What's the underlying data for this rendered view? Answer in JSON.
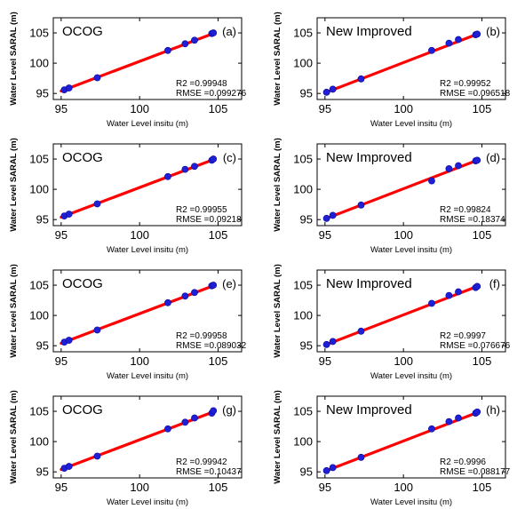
{
  "colors": {
    "fit_line": "#ff0000",
    "points": "#1f1fd6",
    "axes": "#000000",
    "background": "#ffffff"
  },
  "chart_data": [
    {
      "type": "scatter",
      "panel": "(a)",
      "method": "OCOG",
      "xlabel": "Water Level insitu (m)",
      "ylabel": "Water Level SARAL (m)",
      "xlim": [
        94.5,
        106.5
      ],
      "ylim": [
        94,
        107.5
      ],
      "xticks": [
        95,
        100,
        105
      ],
      "yticks": [
        95,
        100,
        105
      ],
      "stats": [
        "R2 =0.99948",
        "RMSE =0.099276"
      ],
      "fit_line": {
        "x": [
          95.0,
          104.8
        ],
        "y": [
          95.4,
          105.0
        ]
      },
      "points": [
        [
          95.2,
          95.6
        ],
        [
          95.5,
          95.9
        ],
        [
          97.3,
          97.6
        ],
        [
          101.8,
          102.1
        ],
        [
          102.9,
          103.2
        ],
        [
          103.5,
          103.8
        ],
        [
          104.6,
          104.9
        ],
        [
          104.7,
          105.0
        ]
      ]
    },
    {
      "type": "scatter",
      "panel": "(b)",
      "method": "New Improved",
      "xlabel": "Water Level insitu (m)",
      "ylabel": "Water Level SARAL (m)",
      "xlim": [
        94.5,
        106.5
      ],
      "ylim": [
        94,
        107.5
      ],
      "xticks": [
        95,
        100,
        105
      ],
      "yticks": [
        95,
        100,
        105
      ],
      "stats": [
        "R2 =0.99952",
        "RMSE =0.096518"
      ],
      "fit_line": {
        "x": [
          95.0,
          104.8
        ],
        "y": [
          95.1,
          104.9
        ]
      },
      "points": [
        [
          95.1,
          95.2
        ],
        [
          95.5,
          95.7
        ],
        [
          97.3,
          97.4
        ],
        [
          101.8,
          102.1
        ],
        [
          102.9,
          103.3
        ],
        [
          103.5,
          103.9
        ],
        [
          104.6,
          104.7
        ],
        [
          104.7,
          104.8
        ]
      ]
    },
    {
      "type": "scatter",
      "panel": "(c)",
      "method": "OCOG",
      "xlabel": "Water Level insitu (m)",
      "ylabel": "Water Level SARAL (m)",
      "xlim": [
        94.5,
        106.5
      ],
      "ylim": [
        94,
        107.5
      ],
      "xticks": [
        95,
        100,
        105
      ],
      "yticks": [
        95,
        100,
        105
      ],
      "stats": [
        "R2 =0.99955",
        "RMSE =0.09218"
      ],
      "fit_line": {
        "x": [
          95.0,
          104.8
        ],
        "y": [
          95.4,
          105.0
        ]
      },
      "points": [
        [
          95.2,
          95.6
        ],
        [
          95.5,
          95.9
        ],
        [
          97.3,
          97.6
        ],
        [
          101.8,
          102.1
        ],
        [
          102.9,
          103.3
        ],
        [
          103.5,
          103.8
        ],
        [
          104.6,
          104.8
        ],
        [
          104.7,
          105.0
        ]
      ]
    },
    {
      "type": "scatter",
      "panel": "(d)",
      "method": "New Improved",
      "xlabel": "Water Level insitu (m)",
      "ylabel": "Water Level SARAL (m)",
      "xlim": [
        94.5,
        106.5
      ],
      "ylim": [
        94,
        107.5
      ],
      "xticks": [
        95,
        100,
        105
      ],
      "yticks": [
        95,
        100,
        105
      ],
      "stats": [
        "R2 =0.99824",
        "RMSE =0.18374"
      ],
      "fit_line": {
        "x": [
          95.0,
          104.8
        ],
        "y": [
          95.1,
          104.9
        ]
      },
      "points": [
        [
          95.1,
          95.2
        ],
        [
          95.5,
          95.7
        ],
        [
          97.3,
          97.4
        ],
        [
          101.8,
          101.4
        ],
        [
          102.9,
          103.4
        ],
        [
          103.5,
          103.9
        ],
        [
          104.6,
          104.7
        ],
        [
          104.7,
          104.8
        ]
      ]
    },
    {
      "type": "scatter",
      "panel": "(e)",
      "method": "OCOG",
      "xlabel": "Water Level insitu (m)",
      "ylabel": "Water Level SARAL (m)",
      "xlim": [
        94.5,
        106.5
      ],
      "ylim": [
        94,
        107.5
      ],
      "xticks": [
        95,
        100,
        105
      ],
      "yticks": [
        95,
        100,
        105
      ],
      "stats": [
        "R2 =0.99958",
        "RMSE =0.089032"
      ],
      "fit_line": {
        "x": [
          95.0,
          104.8
        ],
        "y": [
          95.4,
          105.0
        ]
      },
      "points": [
        [
          95.2,
          95.6
        ],
        [
          95.5,
          95.9
        ],
        [
          97.3,
          97.6
        ],
        [
          101.8,
          102.1
        ],
        [
          102.9,
          103.2
        ],
        [
          103.5,
          103.8
        ],
        [
          104.6,
          104.9
        ],
        [
          104.7,
          105.0
        ]
      ]
    },
    {
      "type": "scatter",
      "panel": "(f)",
      "method": "New Improved",
      "xlabel": "Water Level insitu (m)",
      "ylabel": "Water Level SARAL (m)",
      "xlim": [
        94.5,
        106.5
      ],
      "ylim": [
        94,
        107.5
      ],
      "xticks": [
        95,
        100,
        105
      ],
      "yticks": [
        95,
        100,
        105
      ],
      "stats": [
        "R2 =0.9997",
        "RMSE =0.076676"
      ],
      "fit_line": {
        "x": [
          95.0,
          104.8
        ],
        "y": [
          95.1,
          104.9
        ]
      },
      "points": [
        [
          95.1,
          95.2
        ],
        [
          95.5,
          95.7
        ],
        [
          97.3,
          97.4
        ],
        [
          101.8,
          102.0
        ],
        [
          102.9,
          103.3
        ],
        [
          103.5,
          103.9
        ],
        [
          104.6,
          104.6
        ],
        [
          104.7,
          104.8
        ]
      ]
    },
    {
      "type": "scatter",
      "panel": "(g)",
      "method": "OCOG",
      "xlabel": "Water Level insitu (m)",
      "ylabel": "Water Level SARAL (m)",
      "xlim": [
        94.5,
        106.5
      ],
      "ylim": [
        94,
        107.5
      ],
      "xticks": [
        95,
        100,
        105
      ],
      "yticks": [
        95,
        100,
        105
      ],
      "stats": [
        "R2 =0.99942",
        "RMSE =0.10437"
      ],
      "fit_line": {
        "x": [
          95.0,
          104.8
        ],
        "y": [
          95.4,
          105.0
        ]
      },
      "points": [
        [
          95.2,
          95.6
        ],
        [
          95.5,
          95.9
        ],
        [
          97.3,
          97.6
        ],
        [
          101.8,
          102.1
        ],
        [
          102.9,
          103.2
        ],
        [
          103.5,
          103.9
        ],
        [
          104.6,
          104.7
        ],
        [
          104.7,
          105.1
        ]
      ]
    },
    {
      "type": "scatter",
      "panel": "(h)",
      "method": "New Improved",
      "xlabel": "Water Level insitu (m)",
      "ylabel": "Water Level SARAL (m)",
      "xlim": [
        94.5,
        106.5
      ],
      "ylim": [
        94,
        107.5
      ],
      "xticks": [
        95,
        100,
        105
      ],
      "yticks": [
        95,
        100,
        105
      ],
      "stats": [
        "R2 =0.9996",
        "RMSE =0.088177"
      ],
      "fit_line": {
        "x": [
          95.0,
          104.8
        ],
        "y": [
          95.1,
          104.9
        ]
      },
      "points": [
        [
          95.1,
          95.2
        ],
        [
          95.5,
          95.7
        ],
        [
          97.3,
          97.4
        ],
        [
          101.8,
          102.1
        ],
        [
          102.9,
          103.3
        ],
        [
          103.5,
          103.9
        ],
        [
          104.6,
          104.7
        ],
        [
          104.7,
          104.9
        ]
      ]
    }
  ]
}
